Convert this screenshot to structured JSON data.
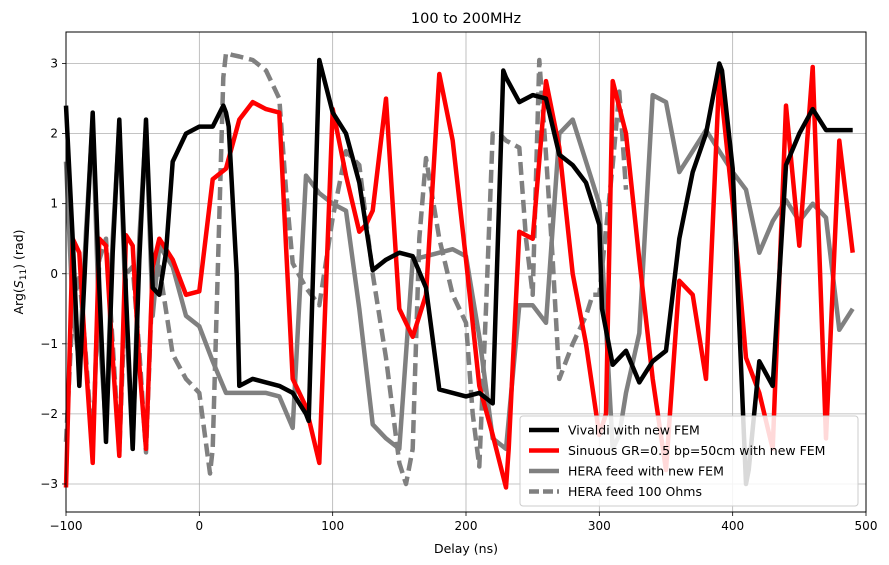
{
  "chart_data": {
    "type": "line",
    "title": "100 to 200MHz",
    "xlabel": "Delay (ns)",
    "ylabel_prefix": "Arg(",
    "ylabel_symbol": "S",
    "ylabel_subscript": "11",
    "ylabel_suffix": ") (rad)",
    "xlim": [
      -100,
      500
    ],
    "ylim": [
      -3.4,
      3.45
    ],
    "xticks": [
      -100,
      0,
      100,
      200,
      300,
      400,
      500
    ],
    "yticks": [
      -3,
      -2,
      -1,
      0,
      1,
      2,
      3
    ],
    "grid": true,
    "legend_position": "lower-right",
    "series": [
      {
        "name": "Vivaldi with new FEM",
        "color": "#000000",
        "style": "solid",
        "x": [
          -100,
          -95,
          -90,
          -85,
          -80,
          -75,
          -70,
          -65,
          -60,
          -55,
          -50,
          -45,
          -40,
          -35,
          -30,
          -25,
          -20,
          -10,
          0,
          10,
          18,
          20,
          22,
          28,
          30,
          40,
          50,
          60,
          70,
          80,
          82,
          90,
          100,
          110,
          120,
          130,
          140,
          150,
          160,
          170,
          180,
          190,
          200,
          210,
          220,
          228,
          230,
          240,
          250,
          260,
          270,
          280,
          290,
          300,
          302,
          310,
          320,
          330,
          340,
          350,
          360,
          370,
          380,
          390,
          392,
          400,
          410,
          412,
          420,
          430,
          440,
          450,
          460,
          470,
          480,
          490
        ],
        "y": [
          2.4,
          0.5,
          -1.6,
          0.4,
          2.3,
          -0.2,
          -2.4,
          0.3,
          2.2,
          -0.3,
          -2.5,
          0.2,
          2.2,
          -0.2,
          -0.3,
          0.3,
          1.6,
          2.0,
          2.1,
          2.1,
          2.4,
          2.3,
          2.1,
          0.0,
          -1.6,
          -1.5,
          -1.55,
          -1.6,
          -1.7,
          -2.0,
          -2.1,
          3.05,
          2.3,
          2.0,
          1.3,
          0.05,
          0.2,
          0.3,
          0.25,
          -0.2,
          -1.65,
          -1.7,
          -1.75,
          -1.7,
          -1.85,
          2.9,
          2.8,
          2.45,
          2.55,
          2.5,
          1.7,
          1.55,
          1.3,
          0.7,
          -0.5,
          -1.3,
          -1.1,
          -1.55,
          -1.25,
          -1.1,
          0.5,
          1.45,
          2.0,
          3.0,
          2.9,
          1.5,
          -3.0,
          -2.8,
          -1.25,
          -1.6,
          1.55,
          2.0,
          2.35,
          2.05,
          2.05,
          2.05
        ]
      },
      {
        "name": "Sinuous GR=0.5 bp=50cm with new FEM",
        "color": "#ff0000",
        "style": "solid",
        "x": [
          -100,
          -95,
          -90,
          -85,
          -80,
          -75,
          -70,
          -65,
          -60,
          -55,
          -50,
          -45,
          -40,
          -35,
          -30,
          -20,
          -10,
          0,
          10,
          20,
          30,
          40,
          50,
          60,
          70,
          80,
          90,
          100,
          110,
          120,
          125,
          130,
          140,
          150,
          160,
          170,
          180,
          190,
          200,
          210,
          220,
          230,
          232,
          240,
          250,
          260,
          270,
          280,
          290,
          300,
          305,
          310,
          320,
          330,
          340,
          350,
          360,
          370,
          380,
          390,
          400,
          410,
          420,
          430,
          440,
          450,
          460,
          470,
          480,
          490
        ],
        "y": [
          -3.05,
          0.5,
          0.3,
          -1.3,
          -2.7,
          0.5,
          0.4,
          -1.2,
          -2.6,
          0.55,
          0.4,
          -1.3,
          -2.5,
          0.1,
          0.5,
          0.2,
          -0.3,
          -0.25,
          1.35,
          1.5,
          2.2,
          2.45,
          2.35,
          2.3,
          -1.5,
          -1.9,
          -2.7,
          2.35,
          1.4,
          0.6,
          0.7,
          0.9,
          2.5,
          -0.5,
          -0.9,
          -0.3,
          2.85,
          1.9,
          0.2,
          -1.6,
          -2.3,
          -3.05,
          -2.5,
          0.6,
          0.5,
          2.75,
          1.8,
          0.0,
          -1.0,
          -2.3,
          -2.0,
          2.75,
          2.0,
          0.2,
          -1.5,
          -2.8,
          -0.1,
          -0.3,
          -1.5,
          2.85,
          1.0,
          -1.2,
          -1.7,
          -2.5,
          2.4,
          0.4,
          2.95,
          -2.35,
          1.9,
          0.3
        ]
      },
      {
        "name": "HERA feed with new FEM",
        "color": "#808080",
        "style": "solid",
        "x": [
          -100,
          -95,
          -90,
          -85,
          -80,
          -75,
          -70,
          -65,
          -60,
          -55,
          -50,
          -45,
          -40,
          -35,
          -30,
          -20,
          -10,
          0,
          10,
          20,
          30,
          40,
          50,
          60,
          70,
          80,
          90,
          100,
          110,
          120,
          130,
          140,
          150,
          160,
          170,
          180,
          190,
          200,
          210,
          220,
          230,
          240,
          250,
          260,
          270,
          280,
          290,
          300,
          310,
          315,
          320,
          330,
          340,
          350,
          360,
          370,
          380,
          390,
          400,
          410,
          420,
          430,
          440,
          450,
          460,
          470,
          480,
          490
        ],
        "y": [
          1.6,
          -0.5,
          -1.3,
          0.6,
          2.2,
          -0.8,
          -2.2,
          0.5,
          2.1,
          -0.6,
          -2.5,
          0.5,
          2.1,
          -0.6,
          0.4,
          0.1,
          -0.6,
          -0.75,
          -1.25,
          -1.7,
          -1.7,
          -1.7,
          -1.7,
          -1.75,
          -2.2,
          1.4,
          1.15,
          1.0,
          0.9,
          -0.5,
          -2.15,
          -2.35,
          -2.5,
          0.2,
          0.25,
          0.3,
          0.35,
          0.25,
          -0.9,
          -2.35,
          -2.5,
          -0.45,
          -0.45,
          -0.7,
          2.0,
          2.2,
          1.6,
          1.0,
          -2.5,
          -2.3,
          -1.7,
          -0.85,
          2.55,
          2.45,
          1.45,
          1.75,
          2.05,
          1.75,
          1.45,
          1.2,
          0.3,
          0.75,
          1.05,
          0.75,
          1.0,
          0.8,
          -0.8,
          -0.5
        ]
      },
      {
        "name": "HERA feed 100 Ohms",
        "color": "#808080",
        "style": "dashed",
        "x": [
          -100,
          -95,
          -90,
          -85,
          -80,
          -75,
          -70,
          -65,
          -60,
          -55,
          -50,
          -45,
          -40,
          -35,
          -30,
          -20,
          -10,
          0,
          8,
          10,
          18,
          20,
          25,
          30,
          40,
          50,
          55,
          60,
          65,
          70,
          80,
          90,
          100,
          110,
          120,
          130,
          140,
          150,
          155,
          160,
          165,
          170,
          180,
          190,
          200,
          205,
          210,
          215,
          220,
          225,
          230,
          240,
          245,
          250,
          255,
          260,
          265,
          270,
          280,
          290,
          295,
          300,
          310,
          315,
          320
        ],
        "y": [
          -2.4,
          -0.5,
          0.0,
          -1.2,
          -2.5,
          0.2,
          0.5,
          -1.0,
          -2.55,
          0.0,
          0.1,
          -1.1,
          -2.55,
          0.0,
          0.1,
          -1.15,
          -1.5,
          -1.7,
          -2.85,
          -2.5,
          2.8,
          3.15,
          3.12,
          3.1,
          3.05,
          2.9,
          2.7,
          2.5,
          1.2,
          0.15,
          -0.2,
          -0.45,
          0.8,
          1.75,
          1.55,
          0.0,
          -1.2,
          -2.7,
          -3.0,
          -2.5,
          0.5,
          1.65,
          0.5,
          -0.3,
          -0.7,
          -2.0,
          -2.75,
          -0.5,
          2.0,
          2.0,
          1.9,
          1.8,
          0.5,
          -0.3,
          3.05,
          1.7,
          0.2,
          -1.5,
          -1.0,
          -0.6,
          -0.3,
          -0.3,
          1.55,
          2.6,
          1.2
        ]
      }
    ]
  }
}
